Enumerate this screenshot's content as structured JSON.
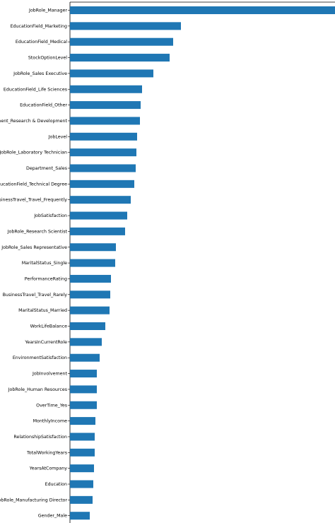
{
  "chart_data": {
    "type": "barh",
    "categories": [
      "JobRole_Manager",
      "EducationField_Marketing",
      "EducationField_Medical",
      "StockOptionLevel",
      "JobRole_Sales Executive",
      "EducationField_Life Sciences",
      "EducationField_Other",
      "Department_Research & Development",
      "JobLevel",
      "JobRole_Laboratory Technician",
      "Department_Sales",
      "EducationField_Technical Degree",
      "BusinessTravel_Travel_Frequently",
      "JobSatisfaction",
      "JobRole_Research Scientist",
      "JobRole_Sales Representative",
      "MaritalStatus_Single",
      "PerformanceRating",
      "BusinessTravel_Travel_Rarely",
      "MaritalStatus_Married",
      "WorkLifeBalance",
      "YearsInCurrentRole",
      "EnvironmentSatisfaction",
      "JobInvolvement",
      "JobRole_Human Resources",
      "OverTime_Yes",
      "MonthlyIncome",
      "RelationshipSatisfaction",
      "TotalWorkingYears",
      "YearsAtCompany",
      "Education",
      "JobRole_Manufacturing Director",
      "Gender_Male"
    ],
    "values": [
      375,
      157,
      146,
      141,
      118,
      102,
      100,
      99,
      95,
      94,
      93,
      91,
      86,
      81,
      78,
      65,
      64,
      58,
      57,
      56,
      50,
      45,
      42,
      38,
      38,
      38,
      36,
      35,
      35,
      34,
      33,
      32,
      28
    ],
    "color": "#1f77b4",
    "xlim": [
      0,
      375
    ]
  }
}
